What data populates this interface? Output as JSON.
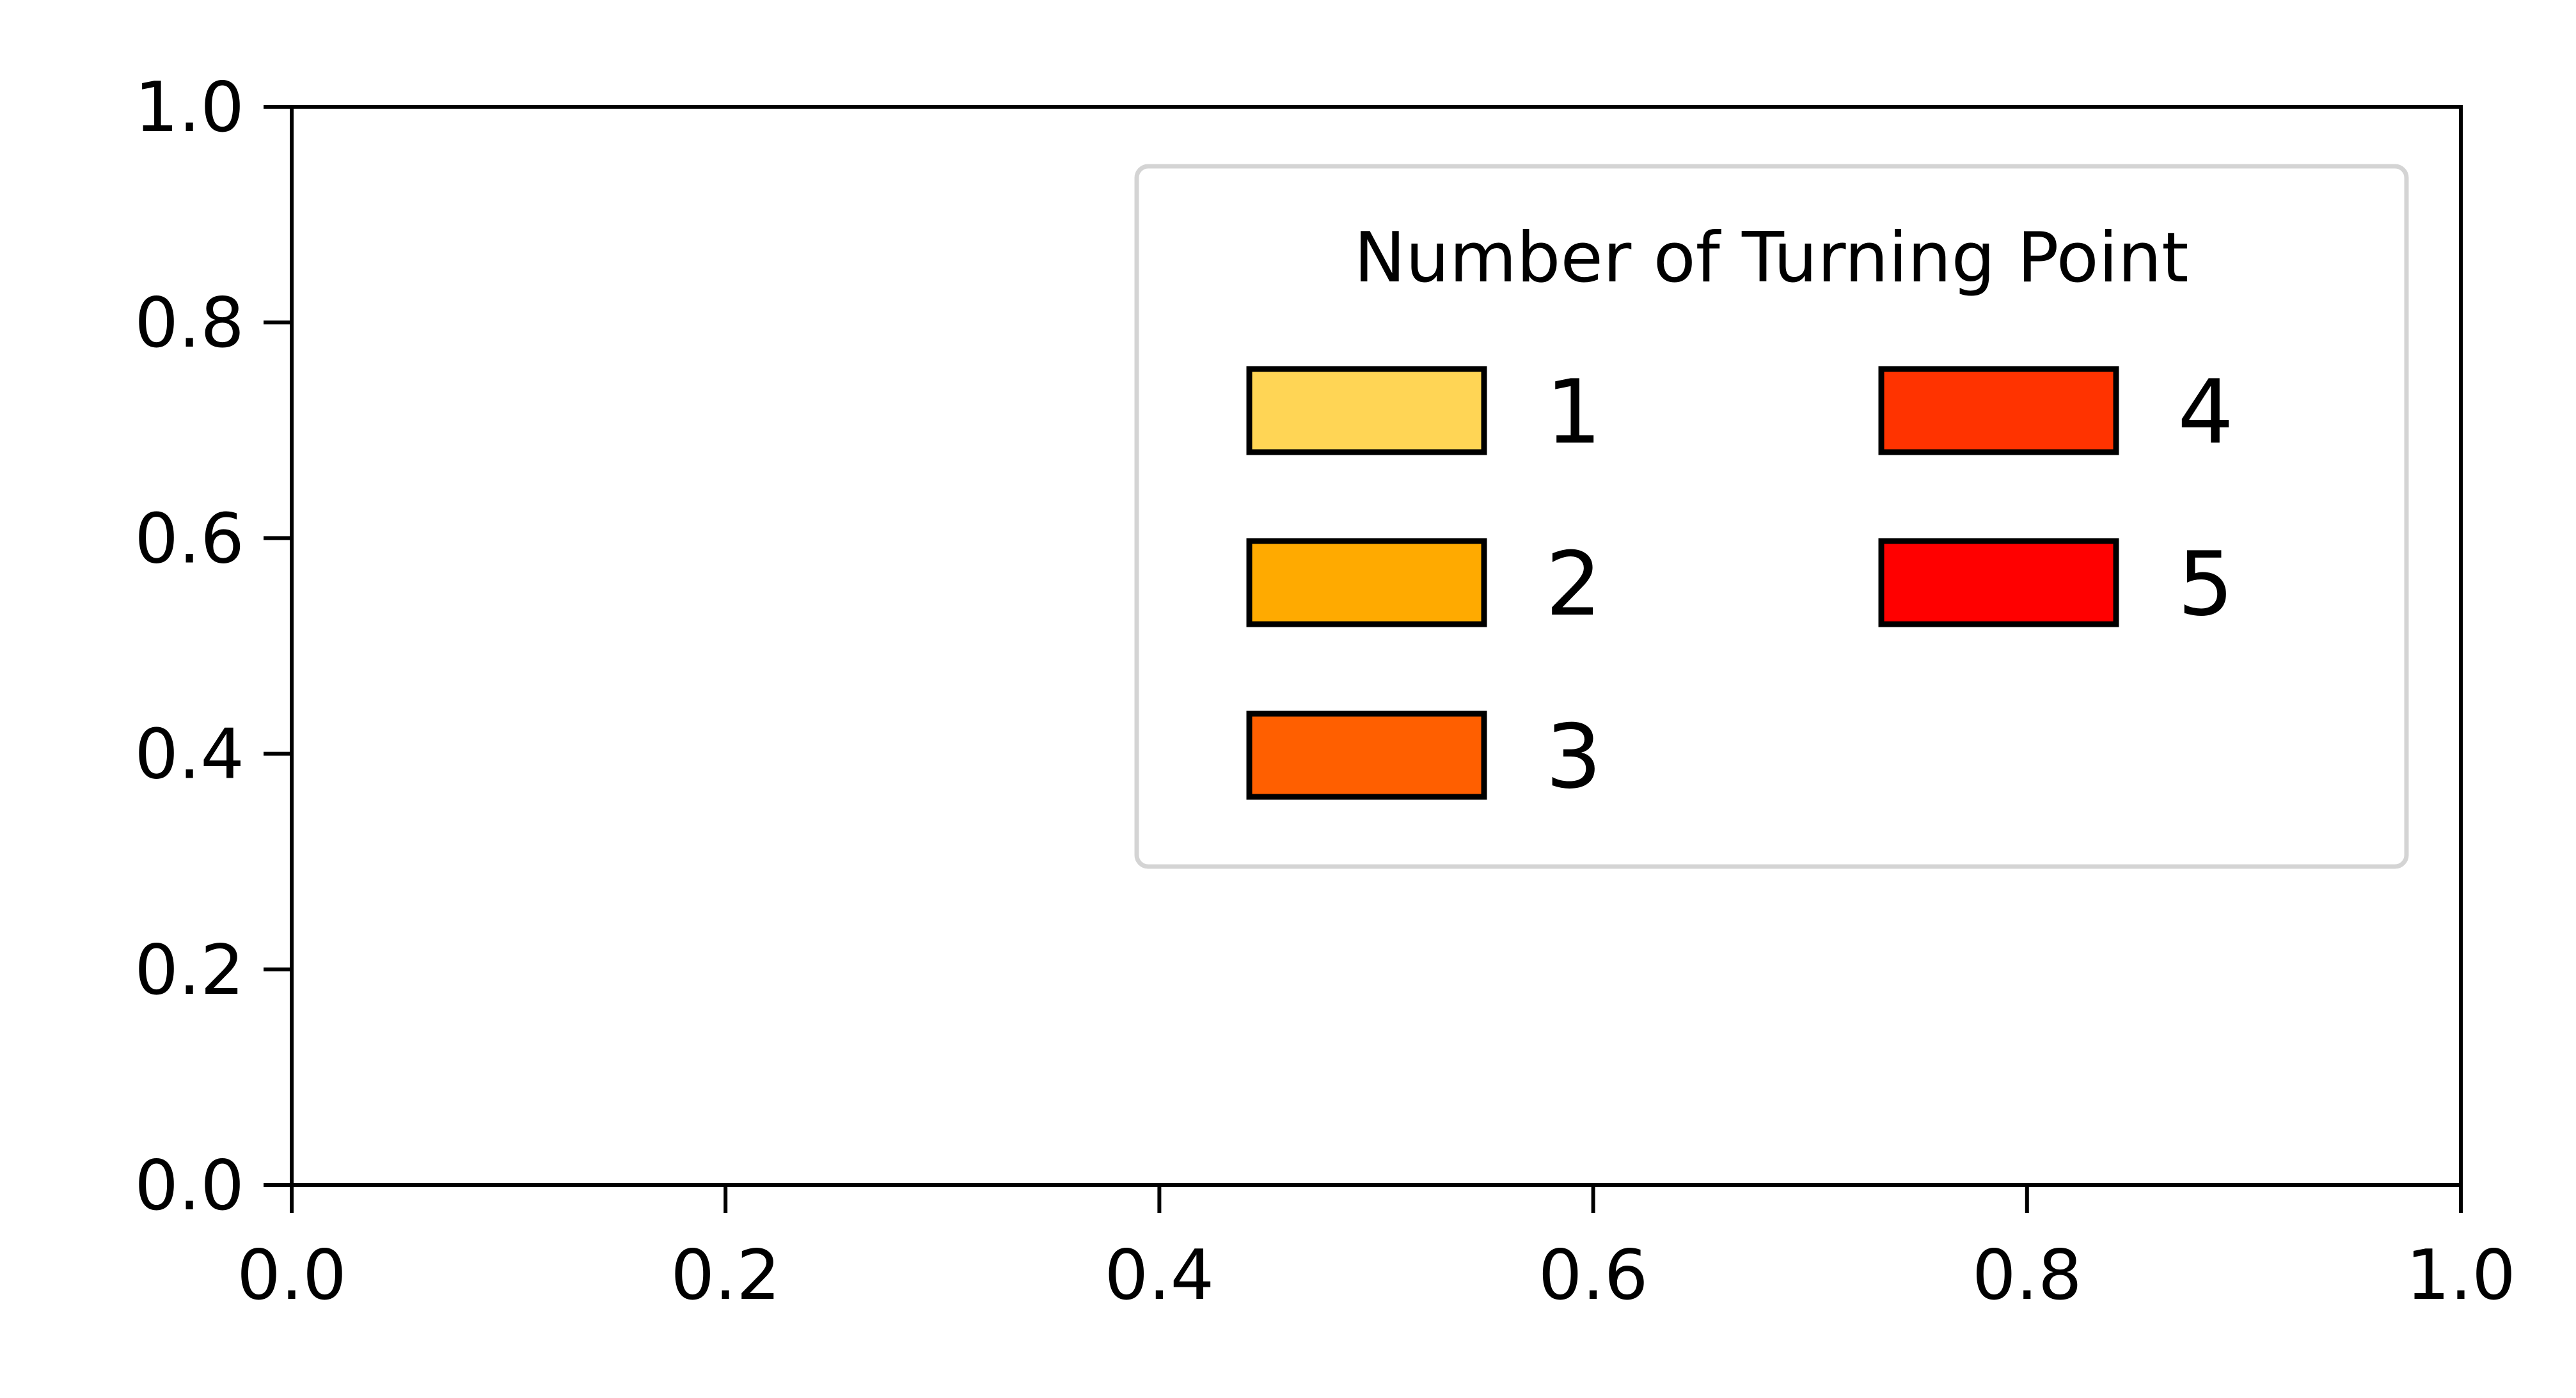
{
  "chart_data": {
    "type": "bar",
    "title": "",
    "xlabel": "",
    "ylabel": "",
    "xlim": [
      0,
      1
    ],
    "ylim": [
      0,
      1
    ],
    "x_ticks": [
      "0.0",
      "0.2",
      "0.4",
      "0.6",
      "0.8",
      "1.0"
    ],
    "y_ticks": [
      "0.0",
      "0.2",
      "0.4",
      "0.6",
      "0.8",
      "1.0"
    ],
    "grid": false,
    "series": [],
    "legend": {
      "title": "Number of Turning Point",
      "placement": "top-right",
      "columns": 2,
      "entries": [
        {
          "label": "1",
          "color": "#FFD555"
        },
        {
          "label": "2",
          "color": "#FFAA00"
        },
        {
          "label": "3",
          "color": "#FF5F00"
        },
        {
          "label": "4",
          "color": "#FF3300"
        },
        {
          "label": "5",
          "color": "#FF0000"
        }
      ]
    }
  }
}
